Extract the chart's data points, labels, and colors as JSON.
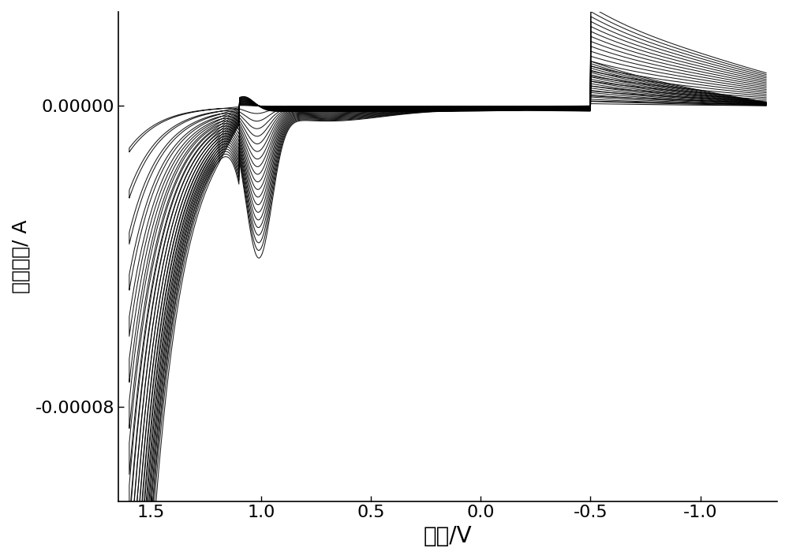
{
  "xlabel": "电位/V",
  "ylabel": "响应电流/ A",
  "xlim": [
    1.65,
    -1.35
  ],
  "ylim": [
    -0.000105,
    2.5e-05
  ],
  "yticks": [
    0.0,
    -8e-05
  ],
  "xticks": [
    1.5,
    1.0,
    0.5,
    0.0,
    -0.5,
    -1.0
  ],
  "num_cycles": 20,
  "line_color": "#000000",
  "background_color": "#ffffff",
  "xlabel_fontsize": 20,
  "ylabel_fontsize": 18,
  "tick_fontsize": 16
}
